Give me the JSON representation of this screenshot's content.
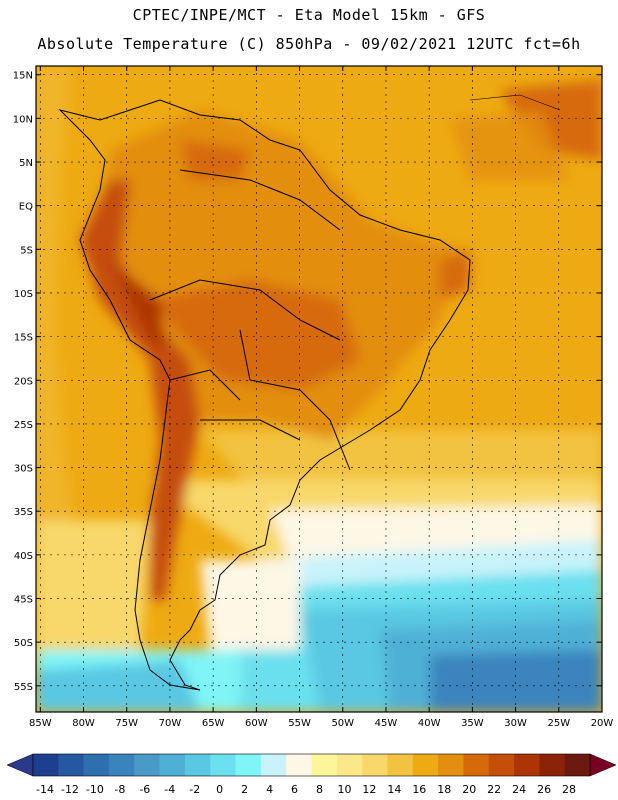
{
  "header": {
    "line1": "CPTEC/INPE/MCT -  Eta Model 15km - GFS",
    "line2": "Absolute Temperature (C) 850hPa - 09/02/2021 12UTC fct=6h"
  },
  "map": {
    "lat_labels": [
      "15N",
      "10N",
      "5N",
      "EQ",
      "5S",
      "10S",
      "15S",
      "20S",
      "25S",
      "30S",
      "35S",
      "40S",
      "45S",
      "50S",
      "55S"
    ],
    "lon_labels": [
      "85W",
      "80W",
      "75W",
      "70W",
      "65W",
      "60W",
      "55W",
      "50W",
      "45W",
      "40W",
      "35W",
      "30W",
      "25W",
      "20W"
    ],
    "lat_values": [
      15,
      10,
      5,
      0,
      -5,
      -10,
      -15,
      -20,
      -25,
      -30,
      -35,
      -40,
      -45,
      -50,
      -55
    ],
    "lon_values": [
      -85,
      -80,
      -75,
      -70,
      -65,
      -60,
      -55,
      -50,
      -45,
      -40,
      -35,
      -30,
      -25,
      -20
    ],
    "extent": {
      "lon_min": -85.5,
      "lon_max": -20,
      "lat_min": -58,
      "lat_max": 16
    }
  },
  "colorbar": {
    "labels": [
      "-14",
      "-12",
      "-10",
      "-8",
      "-6",
      "-4",
      "-2",
      "0",
      "2",
      "4",
      "6",
      "8",
      "10",
      "12",
      "14",
      "16",
      "18",
      "20",
      "22",
      "24",
      "26",
      "28"
    ],
    "colors": [
      "#1c3f8e",
      "#2458a0",
      "#2f6fb0",
      "#3a84bd",
      "#4a9ac8",
      "#4fb0d6",
      "#5ac8e2",
      "#6be0ee",
      "#7ff5f8",
      "#c8f3fb",
      "#fdf7e6",
      "#fcf59a",
      "#fae88a",
      "#f8d86a",
      "#f2c341",
      "#eeaa12",
      "#e38e10",
      "#d66a0a",
      "#c54e08",
      "#ad3406",
      "#8c2208",
      "#6c1a10"
    ],
    "under_color": "#2a3a8a",
    "over_color": "#7a0022"
  }
}
